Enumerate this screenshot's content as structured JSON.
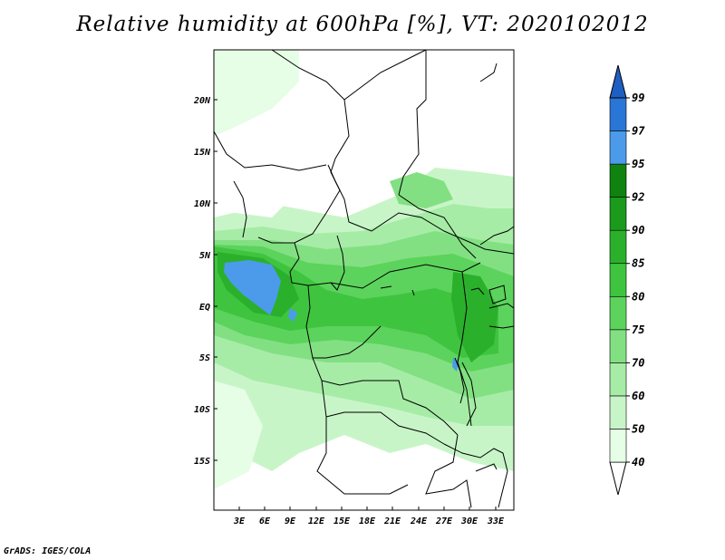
{
  "title": "Relative humidity at 600hPa [%], VT: 2020102012",
  "credit": "GrADS: IGES/COLA",
  "map": {
    "lat_labels": [
      "20N",
      "15N",
      "10N",
      "5N",
      "EQ",
      "5S",
      "10S",
      "15S"
    ],
    "lon_labels": [
      "3E",
      "6E",
      "9E",
      "12E",
      "15E",
      "18E",
      "21E",
      "24E",
      "27E",
      "30E",
      "33E"
    ]
  },
  "colorbar": {
    "levels": [
      "40",
      "50",
      "60",
      "70",
      "75",
      "80",
      "85",
      "90",
      "92",
      "95",
      "97",
      "99"
    ],
    "colors": [
      "#ffffff",
      "#e6fde6",
      "#c8f5c8",
      "#a6eca6",
      "#82e082",
      "#5cd35c",
      "#3fc43f",
      "#2bb02b",
      "#1c9a1c",
      "#0f820f",
      "#4b9bea",
      "#2a76d6",
      "#1f5fc2"
    ]
  }
}
